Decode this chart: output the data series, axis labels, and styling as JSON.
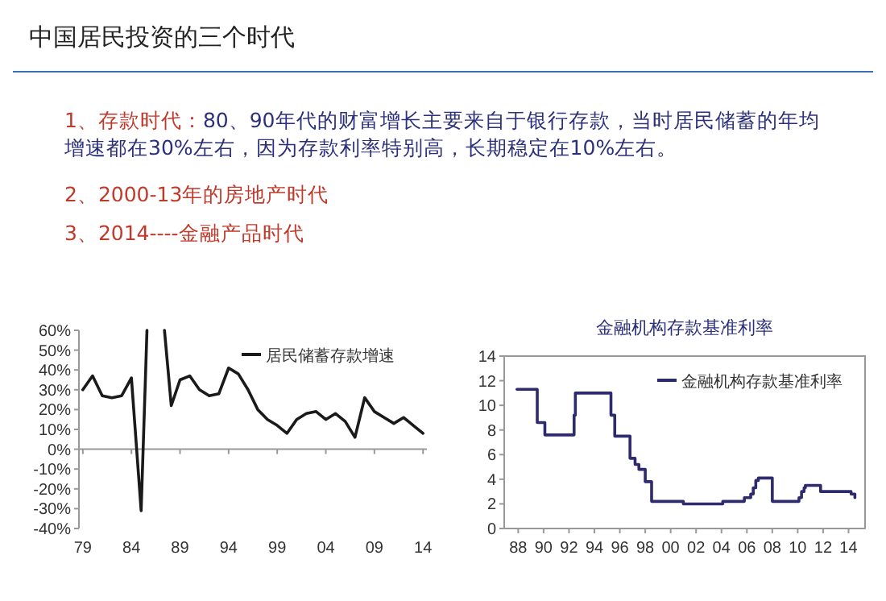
{
  "chart_data": [
    {
      "type": "other",
      "title": "中国居民投资的三个时代",
      "annotations": [
        "1、存款时代：",
        "80、90年代的财富增长主要来自于银行存款，当时居民储蓄的年均增速都在30%左右，因为存款利率特别高，长期稳定在10%左右。",
        "2、2000-13年的房地产时代",
        "3、2014----金融产品时代"
      ]
    },
    {
      "type": "line",
      "legend": "top right",
      "xlim": [
        1978.6,
        2014.4
      ],
      "xticks": [
        {
          "value": 1979,
          "label": "79"
        },
        {
          "value": 1984,
          "label": "84"
        },
        {
          "value": 1989,
          "label": "89"
        },
        {
          "value": 1994,
          "label": "94"
        },
        {
          "value": 1999,
          "label": "99"
        },
        {
          "value": 2004,
          "label": "04"
        },
        {
          "value": 2009,
          "label": "09"
        },
        {
          "value": 2014,
          "label": "14"
        }
      ],
      "ylim": [
        -40,
        60
      ],
      "yticks": [
        {
          "value": 60,
          "label": "60%"
        },
        {
          "value": 50,
          "label": "50%"
        },
        {
          "value": 40,
          "label": "40%"
        },
        {
          "value": 30,
          "label": "30%"
        },
        {
          "value": 20,
          "label": "20%"
        },
        {
          "value": 10,
          "label": "10%"
        },
        {
          "value": 0,
          "label": "0%"
        },
        {
          "value": -10,
          "label": "-10%"
        },
        {
          "value": -20,
          "label": "-20%"
        },
        {
          "value": -30,
          "label": "-30%"
        },
        {
          "value": -40,
          "label": "-40%"
        }
      ],
      "series": [
        {
          "name": "居民储蓄存款增速",
          "color": "#1a1a1a",
          "x": [
            1979,
            1980,
            1981,
            1982,
            1983,
            1984,
            1985,
            1985.6
          ],
          "values": [
            30,
            37,
            27,
            26,
            27,
            36,
            -31,
            60
          ]
        },
        {
          "color": "#1a1a1a",
          "x": [
            1987.4,
            1988.1,
            1989,
            1990,
            1991,
            1992,
            1993,
            1994,
            1995,
            1996,
            1997,
            1998,
            1999,
            2000,
            2001,
            2002,
            2003,
            2004,
            2005,
            2006,
            2007,
            2008,
            2009,
            2010,
            2011,
            2012,
            2013,
            2014
          ],
          "values": [
            60,
            22,
            35,
            37,
            30,
            27,
            28,
            41,
            38,
            30,
            20,
            15,
            12,
            8,
            15,
            18,
            19,
            15,
            18,
            14,
            6,
            26,
            19,
            16,
            13,
            16,
            12,
            8
          ]
        }
      ]
    },
    {
      "type": "step",
      "title": "金融机构存款基准利率",
      "legend": "top right",
      "xlim": [
        1986.9,
        2015.3
      ],
      "xticks": [
        {
          "value": 1988,
          "label": "88"
        },
        {
          "value": 1990,
          "label": "90"
        },
        {
          "value": 1992,
          "label": "92"
        },
        {
          "value": 1994,
          "label": "94"
        },
        {
          "value": 1996,
          "label": "96"
        },
        {
          "value": 1998,
          "label": "98"
        },
        {
          "value": 2000,
          "label": "00"
        },
        {
          "value": 2002,
          "label": "02"
        },
        {
          "value": 2004,
          "label": "04"
        },
        {
          "value": 2006,
          "label": "06"
        },
        {
          "value": 2008,
          "label": "08"
        },
        {
          "value": 2010,
          "label": "10"
        },
        {
          "value": 2012,
          "label": "12"
        },
        {
          "value": 2014,
          "label": "14"
        }
      ],
      "ylim": [
        0,
        14
      ],
      "yticks": [
        0,
        2,
        4,
        6,
        8,
        10,
        12,
        14
      ],
      "series": [
        {
          "name": "金融机构存款基准利率",
          "color": "#2e2a6e",
          "x": [
            1987.9,
            1989.5,
            1990.1,
            1992.4,
            1992.5,
            1995.3,
            1995.6,
            1996.8,
            1997.2,
            1997.5,
            1998.0,
            1998.5,
            2001.0,
            2004.1,
            2005.8,
            2006.3,
            2006.5,
            2006.7,
            2006.9,
            2008.0,
            2010.1,
            2010.3,
            2010.5,
            2010.6,
            2011.8,
            2014.2,
            2014.5
          ],
          "values": [
            11.3,
            8.6,
            7.6,
            9.2,
            11,
            9.2,
            7.5,
            5.7,
            5.2,
            4.8,
            3.8,
            2.2,
            2,
            2.2,
            2.5,
            2.8,
            3.3,
            3.9,
            4.1,
            2.2,
            2.5,
            3,
            3.3,
            3.5,
            3,
            2.8,
            2.5
          ]
        }
      ]
    }
  ]
}
